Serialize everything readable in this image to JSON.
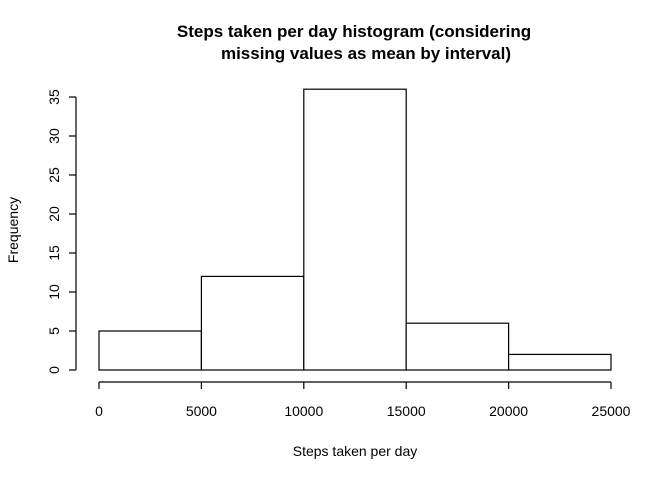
{
  "chart_data": {
    "type": "bar",
    "title_lines": [
      "Steps taken per day histogram (considering",
      "missing values as mean by interval)"
    ],
    "xlabel": "Steps taken per day",
    "ylabel": "Frequency",
    "bins": [
      {
        "start": 0,
        "end": 5000,
        "count": 5
      },
      {
        "start": 5000,
        "end": 10000,
        "count": 12
      },
      {
        "start": 10000,
        "end": 15000,
        "count": 36
      },
      {
        "start": 15000,
        "end": 20000,
        "count": 6
      },
      {
        "start": 20000,
        "end": 25000,
        "count": 2
      }
    ],
    "xlim": [
      0,
      25000
    ],
    "ylim": [
      0,
      35
    ],
    "xticks": [
      0,
      5000,
      10000,
      15000,
      20000,
      25000
    ],
    "yticks": [
      0,
      5,
      10,
      15,
      20,
      25,
      30,
      35
    ],
    "grid": false,
    "bar_fill": "#ffffff",
    "bar_stroke": "#000000"
  }
}
